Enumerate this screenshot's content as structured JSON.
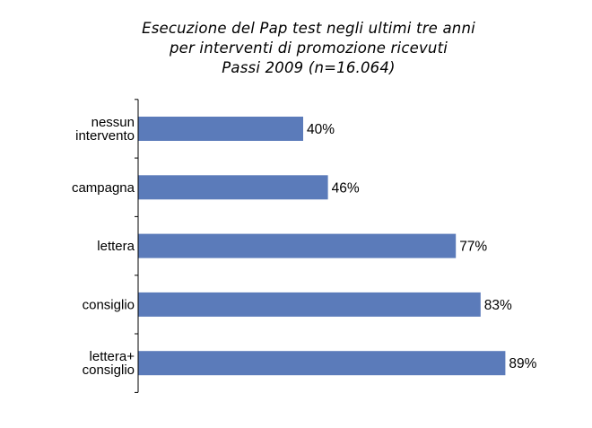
{
  "chart_data": {
    "type": "bar",
    "orientation": "horizontal",
    "title": [
      "Esecuzione del Pap test negli ultimi tre anni",
      "per interventi di promozione ricevuti",
      "Passi 2009 (n=16.064)"
    ],
    "categories": [
      [
        "nessun",
        "intervento"
      ],
      [
        "campagna"
      ],
      [
        "lettera"
      ],
      [
        "consiglio"
      ],
      [
        "lettera+",
        "consiglio"
      ]
    ],
    "values": [
      40,
      46,
      77,
      83,
      89
    ],
    "value_labels": [
      "40%",
      "46%",
      "77%",
      "83%",
      "89%"
    ],
    "xlim": [
      0,
      100
    ],
    "xlabel": "",
    "ylabel": "",
    "grid": false,
    "legend": "none",
    "bar_color": "#5b7bba",
    "axis_color": "#000000"
  }
}
